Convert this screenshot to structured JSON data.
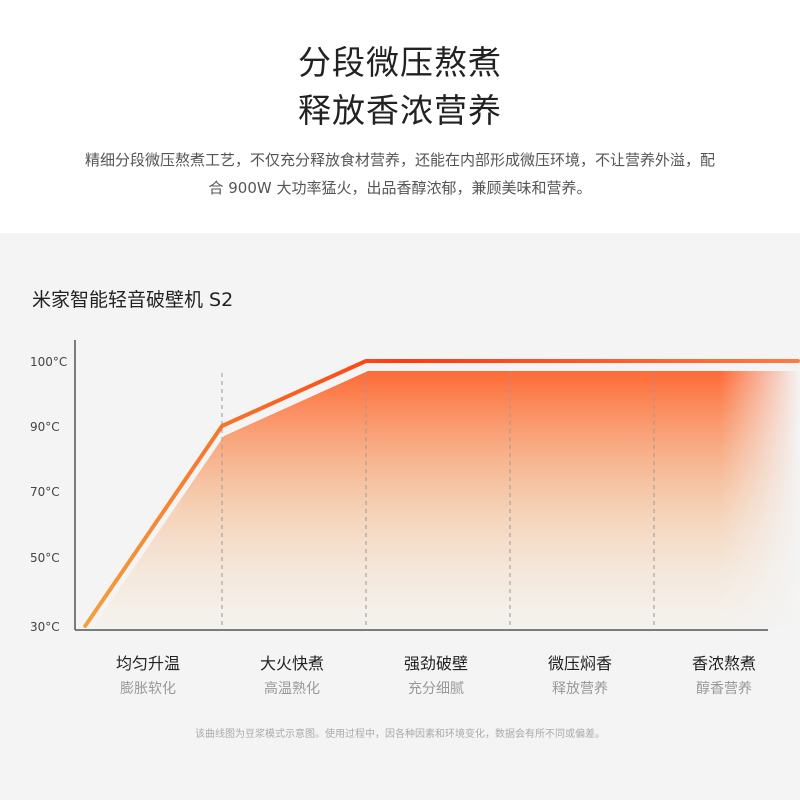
{
  "header": {
    "title_line1": "分段微压熬煮",
    "title_line2": "释放香浓营养",
    "description": "精细分段微压熬煮工艺，不仅充分释放食材营养，还能在内部形成微压环境，不让营养外溢，配合 900W 大功率猛火，出品香醇浓郁，兼顾美味和营养。"
  },
  "product_name": "米家智能轻音破壁机 S2",
  "chart_data": {
    "type": "line",
    "title": "",
    "xlabel": "",
    "ylabel": "",
    "y_ticks": [
      "100°C",
      "90°C",
      "70°C",
      "50°C",
      "30°C"
    ],
    "y_tick_values": [
      100,
      90,
      70,
      50,
      30
    ],
    "x_stage_boundaries": [
      1,
      2,
      3,
      4
    ],
    "series": [
      {
        "x": [
          0.05,
          1,
          2,
          5
        ],
        "y": [
          30,
          90,
          100,
          100
        ]
      }
    ],
    "colors": {
      "start": "#f0a040",
      "end": "#ff3a10"
    },
    "stages": [
      {
        "title": "均匀升温",
        "subtitle": "膨胀软化"
      },
      {
        "title": "大火快煮",
        "subtitle": "高温熟化"
      },
      {
        "title": "强劲破壁",
        "subtitle": "充分细腻"
      },
      {
        "title": "微压焖香",
        "subtitle": "释放营养"
      },
      {
        "title": "香浓熬煮",
        "subtitle": "醇香营养"
      }
    ]
  },
  "footnote": "该曲线图为豆浆模式示意图。使用过程中，因各种因素和环境变化，数据会有所不同或偏差。"
}
